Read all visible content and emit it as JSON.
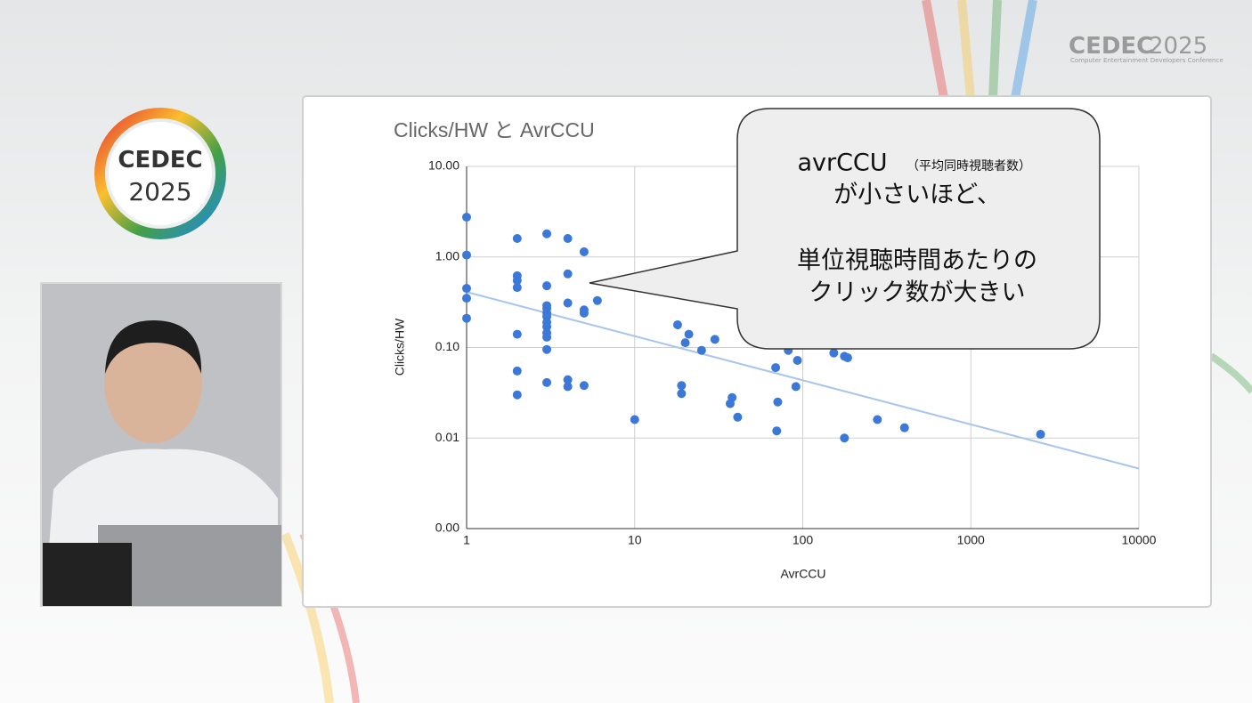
{
  "logo": {
    "name": "CEDEC",
    "year": "2025",
    "subtitle": "Computer Entertainment Developers Conference"
  },
  "callout": {
    "lines": [
      "avrCCU",
      "（平均同時視聴者数）",
      "が小さいほど、",
      "単位視聴時間あたりの",
      "クリック数が大きい"
    ]
  },
  "chart_data": {
    "type": "scatter",
    "title": "Clicks/HW と AvrCCU",
    "x_label": "AvrCCU",
    "y_label": "Clicks/HW",
    "xscale": "log",
    "yscale": "log",
    "grid": true,
    "color": "#3b78d8",
    "xlim": [
      1,
      10000
    ],
    "xticks": [
      1,
      10,
      100,
      1000,
      10000
    ],
    "ylim": [
      0.001,
      10
    ],
    "yticks": [
      {
        "value": 0.001,
        "label": "0.00"
      },
      {
        "value": 0.01,
        "label": "0.01"
      },
      {
        "value": 0.1,
        "label": "0.10"
      },
      {
        "value": 1,
        "label": "1.00"
      },
      {
        "value": 10,
        "label": "10.00"
      }
    ],
    "x": [
      1,
      1,
      1,
      1,
      1,
      2,
      2,
      2,
      2,
      2,
      2,
      2,
      3,
      3,
      3,
      3,
      3,
      3,
      3,
      3,
      3,
      3,
      3,
      3,
      4,
      4,
      4,
      4,
      4,
      5,
      5,
      5,
      5,
      6,
      10,
      18,
      19,
      19,
      20,
      21,
      25,
      30,
      37,
      38,
      41,
      69,
      70,
      71,
      82,
      91,
      93,
      153,
      177,
      177,
      185,
      278,
      403,
      2600
    ],
    "values": [
      2.75,
      1.05,
      0.45,
      0.35,
      0.21,
      1.6,
      0.62,
      0.55,
      0.46,
      0.14,
      0.055,
      0.03,
      1.8,
      0.48,
      0.29,
      0.27,
      0.24,
      0.22,
      0.19,
      0.17,
      0.145,
      0.13,
      0.095,
      0.041,
      1.6,
      0.65,
      0.31,
      0.044,
      0.037,
      1.14,
      0.26,
      0.24,
      0.038,
      0.33,
      0.016,
      0.178,
      0.038,
      0.031,
      0.113,
      0.14,
      0.093,
      0.123,
      0.024,
      0.028,
      0.017,
      0.06,
      0.012,
      0.025,
      0.093,
      0.037,
      0.072,
      0.087,
      0.01,
      0.08,
      0.077,
      0.016,
      0.013,
      0.011
    ],
    "trendline": {
      "color": "#a9c6ea",
      "x": [
        1,
        10000
      ],
      "values": [
        0.41,
        0.0046
      ]
    }
  }
}
